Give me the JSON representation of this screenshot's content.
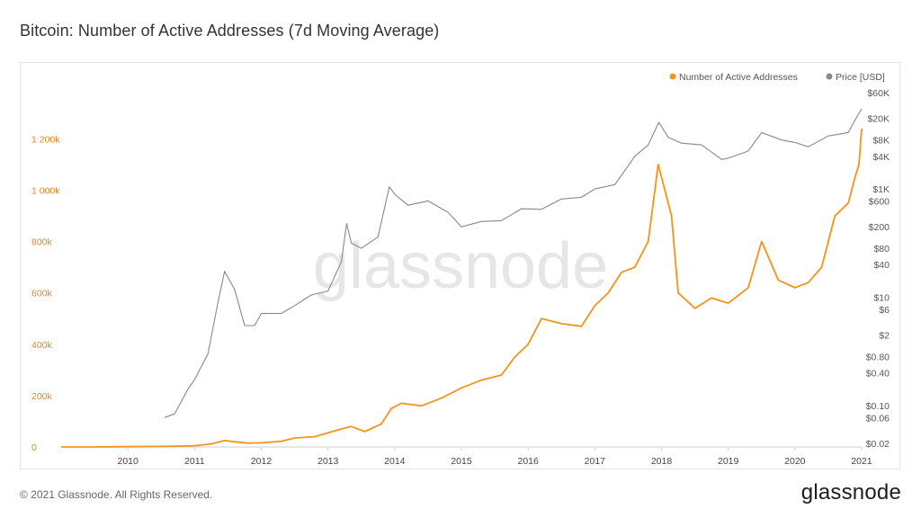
{
  "title": "Bitcoin: Number of Active Addresses (7d Moving Average)",
  "footer": "© 2021 Glassnode. All Rights Reserved.",
  "brand": "glassnode",
  "watermark": "glassnode",
  "colors": {
    "addresses": "#f7931a",
    "price": "#888888",
    "axis_left": "#d98a2b",
    "axis_right": "#555555"
  },
  "chart_data": {
    "type": "line",
    "title": "Bitcoin: Number of Active Addresses (7d Moving Average)",
    "legend_position": "top-right",
    "grid": false,
    "x_ticks": [
      "2010",
      "2011",
      "2012",
      "2013",
      "2014",
      "2015",
      "2016",
      "2017",
      "2018",
      "2019",
      "2020",
      "2021"
    ],
    "x_range": [
      2009.0,
      2021.0
    ],
    "y_left": {
      "ylim": [
        0,
        1250000
      ],
      "ticks": [
        0,
        200000,
        400000,
        600000,
        800000,
        1000000,
        1200000
      ],
      "tick_labels": [
        "0",
        "200k",
        "400k",
        "600k",
        "800k",
        "1 000k",
        "1 200k"
      ]
    },
    "y_right": {
      "scale": "log",
      "ticks": [
        0.02,
        0.06,
        0.1,
        0.4,
        0.8,
        2,
        6,
        10,
        40,
        80,
        200,
        600,
        1000,
        4000,
        8000,
        20000,
        60000
      ],
      "tick_labels": [
        "$0.02",
        "$0.06",
        "$0.10",
        "$0.40",
        "$0.80",
        "$2",
        "$6",
        "$10",
        "$40",
        "$80",
        "$200",
        "$600",
        "$1K",
        "$4K",
        "$8K",
        "$20K",
        "$60K"
      ]
    },
    "series": [
      {
        "name": "Number of Active Addresses",
        "axis": "left",
        "x": [
          2009.0,
          2009.5,
          2010.0,
          2010.5,
          2011.0,
          2011.25,
          2011.45,
          2011.6,
          2011.8,
          2012.0,
          2012.3,
          2012.5,
          2012.8,
          2013.0,
          2013.2,
          2013.35,
          2013.55,
          2013.8,
          2013.95,
          2014.1,
          2014.4,
          2014.7,
          2015.0,
          2015.3,
          2015.6,
          2015.8,
          2016.0,
          2016.2,
          2016.5,
          2016.8,
          2017.0,
          2017.2,
          2017.4,
          2017.6,
          2017.8,
          2017.95,
          2018.05,
          2018.15,
          2018.25,
          2018.5,
          2018.75,
          2019.0,
          2019.3,
          2019.5,
          2019.75,
          2020.0,
          2020.2,
          2020.4,
          2020.6,
          2020.8,
          2020.9,
          2020.96,
          2021.0
        ],
        "values": [
          0,
          0,
          1000,
          2000,
          5000,
          12000,
          25000,
          20000,
          15000,
          16000,
          22000,
          35000,
          40000,
          55000,
          70000,
          80000,
          60000,
          90000,
          150000,
          170000,
          160000,
          190000,
          230000,
          260000,
          280000,
          350000,
          400000,
          500000,
          480000,
          470000,
          550000,
          600000,
          680000,
          700000,
          800000,
          1100000,
          1000000,
          900000,
          600000,
          540000,
          580000,
          560000,
          620000,
          800000,
          650000,
          620000,
          640000,
          700000,
          900000,
          950000,
          1050000,
          1100000,
          1240000
        ]
      },
      {
        "name": "Price [USD]",
        "axis": "right",
        "x": [
          2010.55,
          2010.7,
          2010.9,
          2011.0,
          2011.2,
          2011.35,
          2011.45,
          2011.6,
          2011.75,
          2011.9,
          2012.0,
          2012.3,
          2012.5,
          2012.75,
          2013.0,
          2013.2,
          2013.28,
          2013.35,
          2013.5,
          2013.75,
          2013.92,
          2014.0,
          2014.2,
          2014.5,
          2014.8,
          2015.0,
          2015.3,
          2015.6,
          2015.9,
          2016.2,
          2016.5,
          2016.8,
          2017.0,
          2017.3,
          2017.6,
          2017.8,
          2017.96,
          2018.1,
          2018.3,
          2018.6,
          2018.9,
          2019.0,
          2019.3,
          2019.5,
          2019.8,
          2020.0,
          2020.2,
          2020.5,
          2020.8,
          2020.95,
          2021.0
        ],
        "values": [
          0.06,
          0.07,
          0.2,
          0.3,
          0.9,
          8,
          30,
          14,
          3,
          3,
          5,
          5,
          7,
          11,
          13,
          45,
          230,
          100,
          80,
          130,
          1100,
          800,
          500,
          600,
          370,
          200,
          250,
          260,
          430,
          420,
          650,
          700,
          1000,
          1200,
          4000,
          6500,
          17000,
          9000,
          7000,
          6500,
          3500,
          3700,
          5000,
          11000,
          8000,
          7200,
          6000,
          9500,
          11000,
          24000,
          30000
        ]
      }
    ]
  }
}
